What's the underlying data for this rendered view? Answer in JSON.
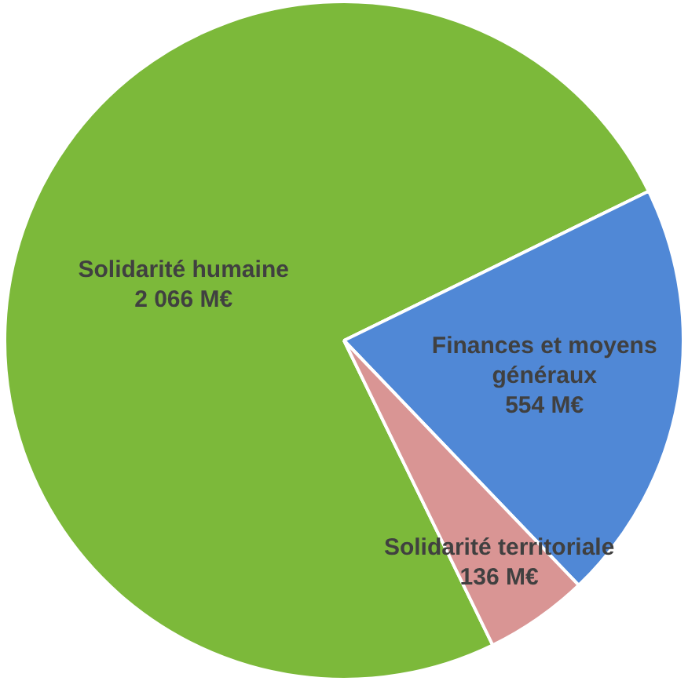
{
  "chart_data": {
    "type": "pie",
    "categories": [
      "Solidarité humaine",
      "Finances et moyens généraux",
      "Solidarité territoriale"
    ],
    "values": [
      2066,
      554,
      136
    ],
    "colors": [
      "#7cb93a",
      "#5088d6",
      "#d99594"
    ],
    "value_labels": [
      "2 066 M€",
      "554 M€",
      "136 M€"
    ],
    "legend": false
  }
}
